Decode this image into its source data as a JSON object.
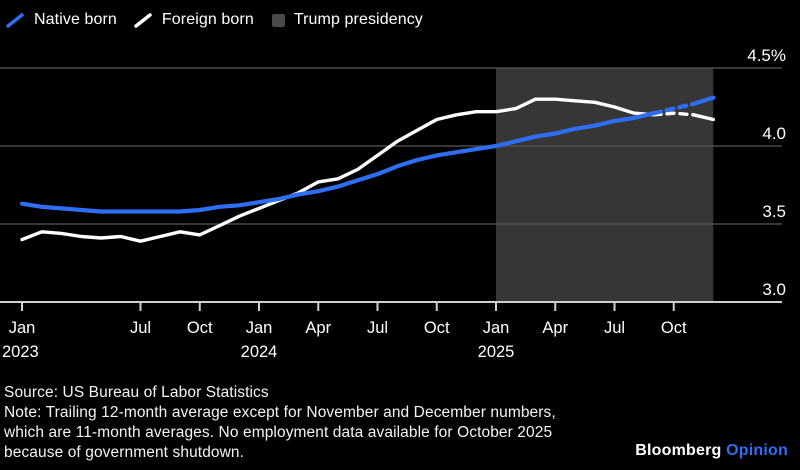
{
  "chart_data": {
    "type": "line",
    "title": "",
    "x_unit": "month",
    "x_range": [
      "Jan 2023",
      "Dec 2025"
    ],
    "ylim": [
      3.0,
      4.5
    ],
    "grid": true,
    "legend_position": "top-left",
    "y_ticks": [
      {
        "value": 4.5,
        "label": "4.5%"
      },
      {
        "value": 4.0,
        "label": "4.0"
      },
      {
        "value": 3.5,
        "label": "3.5"
      },
      {
        "value": 3.0,
        "label": "3.0"
      }
    ],
    "x_ticks": [
      {
        "index": 0,
        "label": "Jan",
        "year": "2023",
        "year_align": "left"
      },
      {
        "index": 6,
        "label": "Jul"
      },
      {
        "index": 9,
        "label": "Oct"
      },
      {
        "index": 12,
        "label": "Jan",
        "year": "2024"
      },
      {
        "index": 15,
        "label": "Apr"
      },
      {
        "index": 18,
        "label": "Jul"
      },
      {
        "index": 21,
        "label": "Oct"
      },
      {
        "index": 24,
        "label": "Jan",
        "year": "2025"
      },
      {
        "index": 27,
        "label": "Apr"
      },
      {
        "index": 30,
        "label": "Jul"
      },
      {
        "index": 33,
        "label": "Oct"
      }
    ],
    "series": [
      {
        "name": "Foreign born",
        "color": "#ffffff",
        "width": 3.4,
        "values": [
          3.4,
          3.45,
          3.44,
          3.42,
          3.41,
          3.42,
          3.39,
          3.42,
          3.45,
          3.43,
          3.49,
          3.55,
          3.6,
          3.65,
          3.7,
          3.77,
          3.79,
          3.85,
          3.94,
          4.03,
          4.1,
          4.17,
          4.2,
          4.22,
          4.22,
          4.24,
          4.3,
          4.3,
          4.29,
          4.28,
          4.25,
          4.21,
          4.2,
          4.21,
          4.2,
          4.17
        ]
      },
      {
        "name": "Native born",
        "color": "#2e6df4",
        "width": 4.2,
        "values": [
          3.63,
          3.61,
          3.6,
          3.59,
          3.58,
          3.58,
          3.58,
          3.58,
          3.58,
          3.59,
          3.61,
          3.62,
          3.64,
          3.66,
          3.69,
          3.71,
          3.74,
          3.78,
          3.82,
          3.87,
          3.91,
          3.94,
          3.96,
          3.98,
          4.0,
          4.03,
          4.06,
          4.08,
          4.11,
          4.13,
          4.16,
          4.18,
          4.21,
          4.24,
          4.27,
          4.31
        ]
      }
    ],
    "dashed_segment": {
      "from_index": 32,
      "to_index": 34
    },
    "shade": {
      "label": "Trump presidency",
      "from_index": 24,
      "to_index": 35,
      "color": "#363636",
      "legend_color": "#4a4a4a"
    },
    "colors": {
      "background": "#000000",
      "grid": "#585858",
      "axis": "#cfcfcf",
      "label": "#ffffff"
    }
  },
  "footer": {
    "source": "Source: US Bureau of Labor Statistics",
    "note_lines": [
      "Note: Trailing 12-month average except for November and December numbers,",
      "which are 11-month averages. No employment data available for October 2025",
      "because of government shutdown."
    ],
    "brand": {
      "name": "Bloomberg",
      "edition": "Opinion",
      "edition_color": "#2e6df4"
    }
  }
}
